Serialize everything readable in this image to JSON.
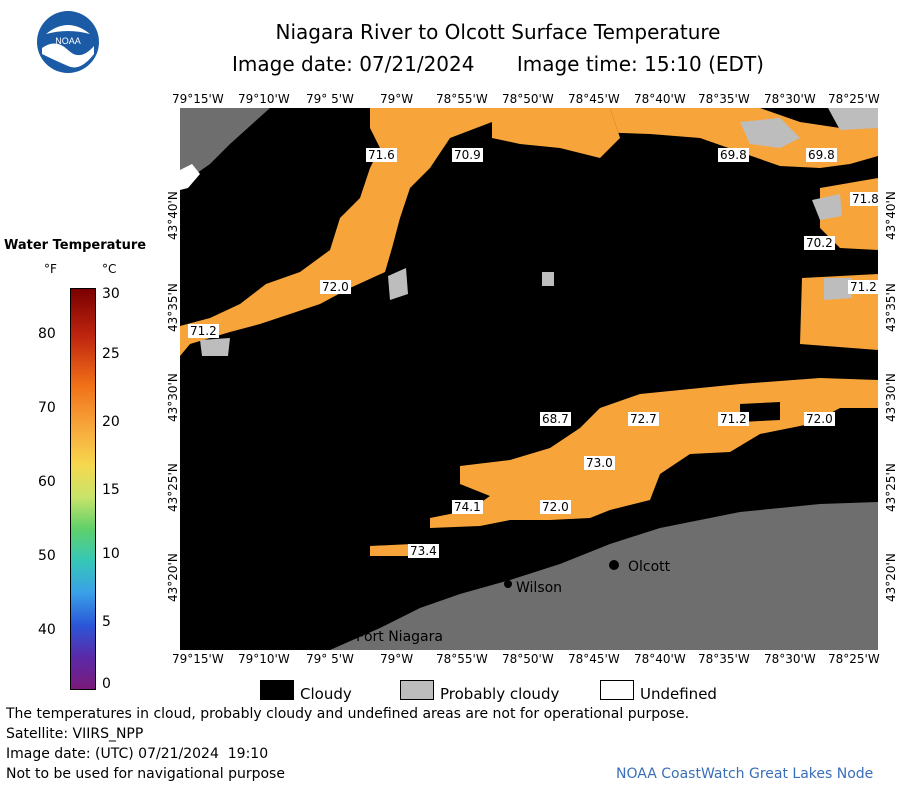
{
  "header": {
    "title": "Niagara River to Olcott Surface Temperature",
    "image_date": "Image date: 07/21/2024",
    "image_time": "Image time: 15:10 (EDT)"
  },
  "logo": {
    "text": "NOAA"
  },
  "map": {
    "lon_ticks": [
      "79°15'W",
      "79°10'W",
      "79° 5'W",
      "79°W",
      "78°55'W",
      "78°50'W",
      "78°45'W",
      "78°40'W",
      "78°35'W",
      "78°30'W",
      "78°25'W"
    ],
    "lat_ticks": [
      "43°40'N",
      "43°35'N",
      "43°30'N",
      "43°25'N",
      "43°20'N"
    ],
    "temperature_labels": [
      "71.6",
      "70.9",
      "69.8",
      "69.8",
      "71.8",
      "70.2",
      "72.0",
      "71.2",
      "71.2",
      "68.7",
      "72.7",
      "71.2",
      "72.0",
      "73.0",
      "74.1",
      "72.0",
      "73.4"
    ],
    "places": [
      "Olcott",
      "Wilson",
      "Port Niagara"
    ],
    "colors": {
      "water_orange": "#f7a43a",
      "cloud": "#000000",
      "probably_cloudy": "#bdbdbd",
      "land": "#6e6e6e",
      "undefined": "#ffffff"
    }
  },
  "legend": {
    "title": "Water Temperature",
    "unit_f": "°F",
    "unit_c": "°C",
    "f_ticks": [
      "80",
      "70",
      "60",
      "50",
      "40"
    ],
    "c_ticks": [
      "30",
      "25",
      "20",
      "15",
      "10",
      "5",
      "0"
    ]
  },
  "key": {
    "cloudy": "Cloudy",
    "probably_cloudy": "Probably cloudy",
    "undefined": "Undefined"
  },
  "footer": {
    "note": "The temperatures in cloud, probably cloudy and undefined areas are not for operational purpose.",
    "satellite": "Satellite: VIIRS_NPP",
    "utc_date": "Image date: (UTC) 07/21/2024  19:10",
    "nav_warning": "Not to be used for navigational purpose",
    "credit": "NOAA CoastWatch Great Lakes Node"
  }
}
